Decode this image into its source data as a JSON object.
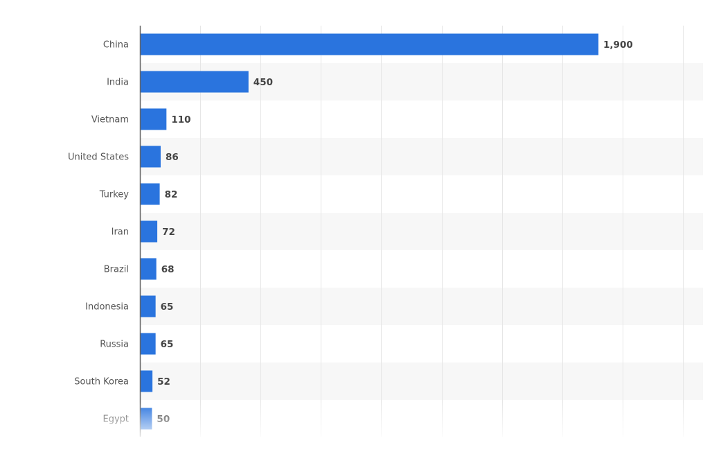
{
  "chart_data": {
    "type": "bar",
    "orientation": "horizontal",
    "title": "",
    "xlabel": "",
    "ylabel": "",
    "categories": [
      "China",
      "India",
      "Vietnam",
      "United States",
      "Turkey",
      "Iran",
      "Brazil",
      "Indonesia",
      "Russia",
      "South Korea",
      "Egypt"
    ],
    "values": [
      1900,
      450,
      110,
      86,
      82,
      72,
      68,
      65,
      65,
      52,
      50
    ],
    "value_labels": [
      "1,900",
      "450",
      "110",
      "86",
      "82",
      "72",
      "68",
      "65",
      "65",
      "52",
      "50"
    ],
    "xlim": [
      0,
      2250
    ],
    "grid": true,
    "grid_step": 250,
    "legend": "none",
    "colors": {
      "bar": "#2a74de",
      "band": "#f7f7f7",
      "grid": "#e6e6e6",
      "axis": "#666666"
    }
  }
}
